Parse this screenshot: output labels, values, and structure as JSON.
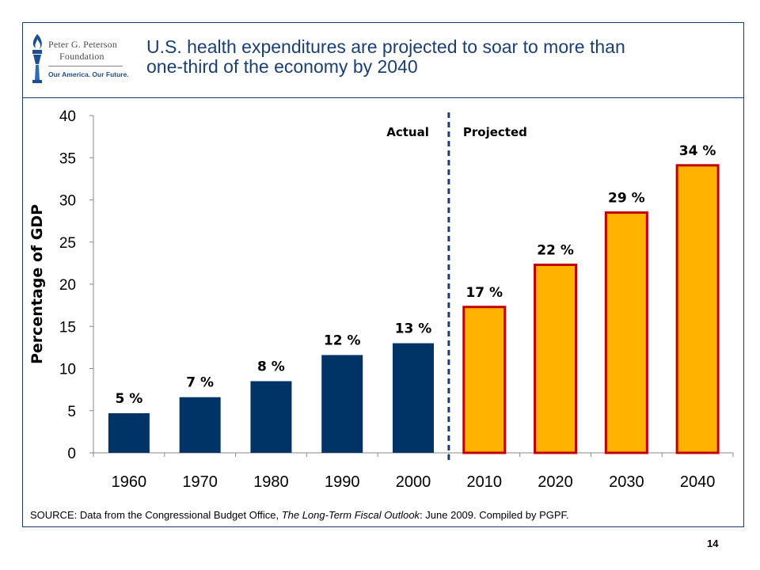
{
  "header": {
    "logo_org_line1": "Peter G. Peterson",
    "logo_org_line2": "Foundation",
    "logo_tagline": "Our America. Our Future.",
    "title_line1": "U.S. health expenditures are projected to soar to more than",
    "title_line2": "one-third of the economy by 2040"
  },
  "colors": {
    "actual_bar": "#003366",
    "projected_fill": "#ffb300",
    "projected_outline": "#c00000",
    "divider": "#1f3b73",
    "frame": "#1f3b5a"
  },
  "chart_data": {
    "type": "bar",
    "ylabel": "Percentage of GDP",
    "xlabel": "",
    "ylim": [
      0,
      40
    ],
    "yticks": [
      0,
      5,
      10,
      15,
      20,
      25,
      30,
      35,
      40
    ],
    "categories": [
      "1960",
      "1970",
      "1980",
      "1990",
      "2000",
      "2010",
      "2020",
      "2030",
      "2040"
    ],
    "series": [
      {
        "values": [
          4.7,
          6.6,
          8.5,
          11.6,
          13.0,
          17.3,
          22.3,
          28.5,
          34.1
        ]
      }
    ],
    "data_labels": [
      "5 %",
      "7 %",
      "8 %",
      "12 %",
      "13 %",
      "17 %",
      "22 %",
      "29 %",
      "34 %"
    ],
    "segments": {
      "actual": {
        "label": "Actual",
        "categories": [
          "1960",
          "1970",
          "1980",
          "1990",
          "2000"
        ]
      },
      "projected": {
        "label": "Projected",
        "categories": [
          "2010",
          "2020",
          "2030",
          "2040"
        ]
      }
    },
    "grid": false
  },
  "source": {
    "prefix": "SOURCE: Data from the Congressional Budget Office, ",
    "publication": "The Long-Term Fiscal Outlook",
    "suffix": ": June 2009. Compiled by PGPF."
  },
  "page_number": "14"
}
